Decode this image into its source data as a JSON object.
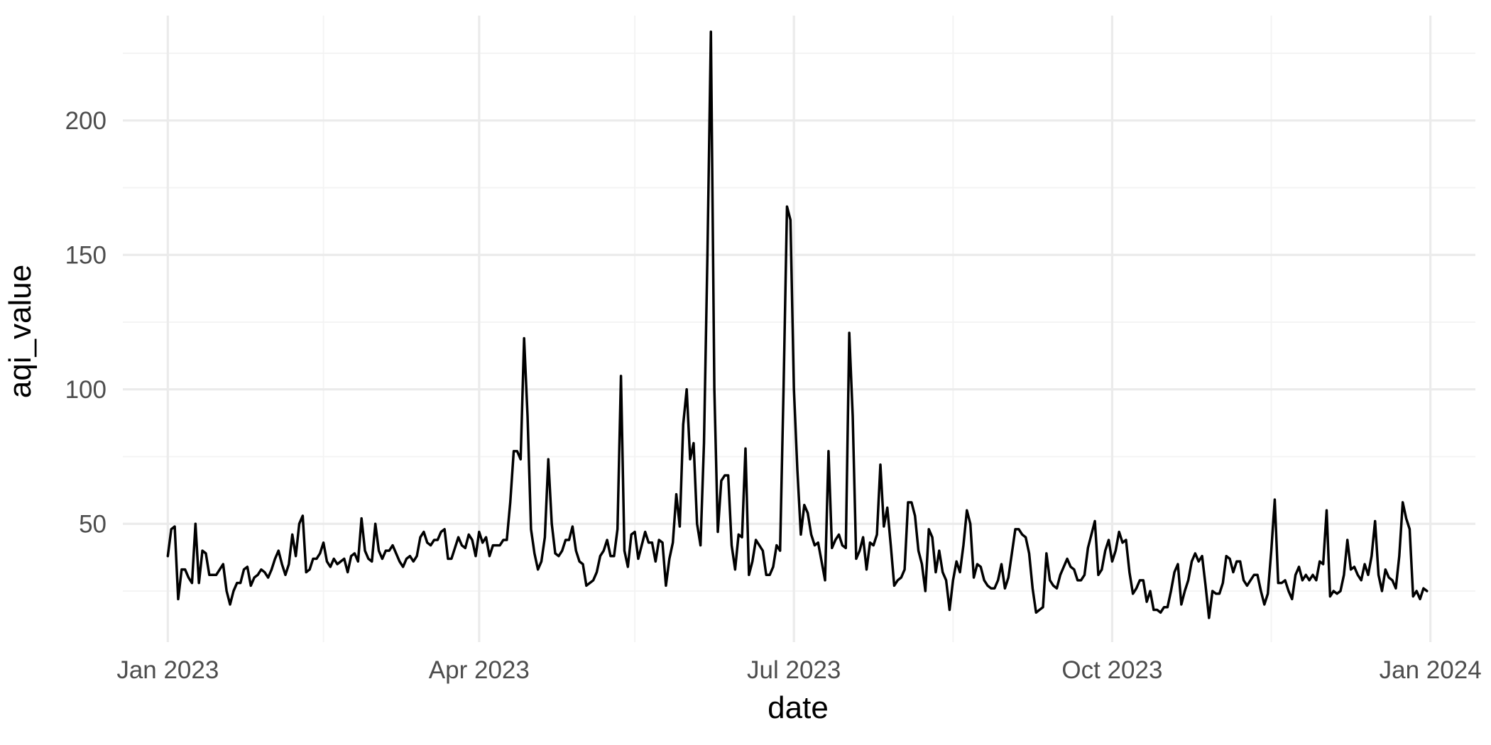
{
  "chart_data": {
    "type": "line",
    "title": "",
    "xlabel": "date",
    "ylabel": "aqi_value",
    "x_type": "date",
    "xlim": [
      "2022-12-19",
      "2024-01-14"
    ],
    "ylim": [
      6,
      239
    ],
    "x_ticks": [
      {
        "date": "2023-01-01",
        "label": "Jan 2023"
      },
      {
        "date": "2023-04-01",
        "label": "Apr 2023"
      },
      {
        "date": "2023-07-01",
        "label": "Jul 2023"
      },
      {
        "date": "2023-10-01",
        "label": "Oct 2023"
      },
      {
        "date": "2024-01-01",
        "label": "Jan 2024"
      }
    ],
    "x_minor_ticks": [
      "2023-02-15",
      "2023-05-16",
      "2023-08-16",
      "2023-11-16"
    ],
    "y_ticks": [
      50,
      100,
      150,
      200
    ],
    "y_minor_ticks": [
      25,
      75,
      125,
      175,
      225
    ],
    "grid": true,
    "legend": "none",
    "line_color": "#000000",
    "start_date": "2023-01-01",
    "x": [
      "2023-01-01",
      "2023-01-02",
      "2023-01-03",
      "2023-01-04",
      "2023-01-05",
      "2023-01-06",
      "2023-01-07",
      "2023-01-08",
      "2023-01-09",
      "2023-01-10",
      "2023-01-11",
      "2023-01-12",
      "2023-01-13",
      "2023-01-14",
      "2023-01-15",
      "2023-01-16",
      "2023-01-17",
      "2023-01-18",
      "2023-01-19",
      "2023-01-20",
      "2023-01-21",
      "2023-01-22",
      "2023-01-23",
      "2023-01-24",
      "2023-01-25",
      "2023-01-26",
      "2023-01-27",
      "2023-01-28",
      "2023-01-29",
      "2023-01-30",
      "2023-01-31",
      "2023-02-01",
      "2023-02-02",
      "2023-02-03",
      "2023-02-04",
      "2023-02-05",
      "2023-02-06",
      "2023-02-07",
      "2023-02-08",
      "2023-02-09",
      "2023-02-10",
      "2023-02-11",
      "2023-02-12",
      "2023-02-13",
      "2023-02-14",
      "2023-02-15",
      "2023-02-16",
      "2023-02-17",
      "2023-02-18",
      "2023-02-19",
      "2023-02-20",
      "2023-02-21",
      "2023-02-22",
      "2023-02-23",
      "2023-02-24",
      "2023-02-25",
      "2023-02-26",
      "2023-02-27",
      "2023-02-28",
      "2023-03-01",
      "2023-03-02",
      "2023-03-03",
      "2023-03-04",
      "2023-03-05",
      "2023-03-06",
      "2023-03-07",
      "2023-03-08",
      "2023-03-09",
      "2023-03-10",
      "2023-03-11",
      "2023-03-12",
      "2023-03-13",
      "2023-03-14",
      "2023-03-15",
      "2023-03-16",
      "2023-03-17",
      "2023-03-18",
      "2023-03-19",
      "2023-03-20",
      "2023-03-21",
      "2023-03-22",
      "2023-03-23",
      "2023-03-24",
      "2023-03-25",
      "2023-03-26",
      "2023-03-27",
      "2023-03-28",
      "2023-03-29",
      "2023-03-30",
      "2023-03-31",
      "2023-04-01",
      "2023-04-02",
      "2023-04-03",
      "2023-04-04",
      "2023-04-05",
      "2023-04-06",
      "2023-04-07",
      "2023-04-08",
      "2023-04-09",
      "2023-04-10",
      "2023-04-11",
      "2023-04-12",
      "2023-04-13",
      "2023-04-14",
      "2023-04-15",
      "2023-04-16",
      "2023-04-17",
      "2023-04-18",
      "2023-04-19",
      "2023-04-20",
      "2023-04-21",
      "2023-04-22",
      "2023-04-23",
      "2023-04-24",
      "2023-04-25",
      "2023-04-26",
      "2023-04-27",
      "2023-04-28",
      "2023-04-29",
      "2023-04-30",
      "2023-05-01",
      "2023-05-02",
      "2023-05-03",
      "2023-05-04",
      "2023-05-05",
      "2023-05-06",
      "2023-05-07",
      "2023-05-08",
      "2023-05-09",
      "2023-05-10",
      "2023-05-11",
      "2023-05-12",
      "2023-05-13",
      "2023-05-14",
      "2023-05-15",
      "2023-05-16",
      "2023-05-17",
      "2023-05-18",
      "2023-05-19",
      "2023-05-20",
      "2023-05-21",
      "2023-05-22",
      "2023-05-23",
      "2023-05-24",
      "2023-05-25",
      "2023-05-26",
      "2023-05-27",
      "2023-05-28",
      "2023-05-29",
      "2023-05-30",
      "2023-05-31",
      "2023-06-01",
      "2023-06-02",
      "2023-06-03",
      "2023-06-04",
      "2023-06-05",
      "2023-06-06",
      "2023-06-07",
      "2023-06-08",
      "2023-06-09",
      "2023-06-10",
      "2023-06-11",
      "2023-06-12",
      "2023-06-13",
      "2023-06-14",
      "2023-06-15",
      "2023-06-16",
      "2023-06-17",
      "2023-06-18",
      "2023-06-19",
      "2023-06-20",
      "2023-06-21",
      "2023-06-22",
      "2023-06-23",
      "2023-06-24",
      "2023-06-25",
      "2023-06-26",
      "2023-06-27",
      "2023-06-28",
      "2023-06-29",
      "2023-06-30",
      "2023-07-01",
      "2023-07-02",
      "2023-07-03",
      "2023-07-04",
      "2023-07-05",
      "2023-07-06",
      "2023-07-07",
      "2023-07-08",
      "2023-07-09",
      "2023-07-10",
      "2023-07-11",
      "2023-07-12",
      "2023-07-13",
      "2023-07-14",
      "2023-07-15",
      "2023-07-16",
      "2023-07-17",
      "2023-07-18",
      "2023-07-19",
      "2023-07-20",
      "2023-07-21",
      "2023-07-22",
      "2023-07-23",
      "2023-07-24",
      "2023-07-25",
      "2023-07-26",
      "2023-07-27",
      "2023-07-28",
      "2023-07-29",
      "2023-07-30",
      "2023-07-31",
      "2023-08-01",
      "2023-08-02",
      "2023-08-03",
      "2023-08-04",
      "2023-08-05",
      "2023-08-06",
      "2023-08-07",
      "2023-08-08",
      "2023-08-09",
      "2023-08-10",
      "2023-08-11",
      "2023-08-12",
      "2023-08-13",
      "2023-08-14",
      "2023-08-15",
      "2023-08-16",
      "2023-08-17",
      "2023-08-18",
      "2023-08-19",
      "2023-08-20",
      "2023-08-21",
      "2023-08-22",
      "2023-08-23",
      "2023-08-24",
      "2023-08-25",
      "2023-08-26",
      "2023-08-27",
      "2023-08-28",
      "2023-08-29",
      "2023-08-30",
      "2023-08-31",
      "2023-09-01",
      "2023-09-02",
      "2023-09-03",
      "2023-09-04",
      "2023-09-05",
      "2023-09-06",
      "2023-09-07",
      "2023-09-08",
      "2023-09-09",
      "2023-09-10",
      "2023-09-11",
      "2023-09-12",
      "2023-09-13",
      "2023-09-14",
      "2023-09-15",
      "2023-09-16",
      "2023-09-17",
      "2023-09-18",
      "2023-09-19",
      "2023-09-20",
      "2023-09-21",
      "2023-09-22",
      "2023-09-23",
      "2023-09-24",
      "2023-09-25",
      "2023-09-26",
      "2023-09-27",
      "2023-09-28",
      "2023-09-29",
      "2023-09-30",
      "2023-10-01",
      "2023-10-02",
      "2023-10-03",
      "2023-10-04",
      "2023-10-05",
      "2023-10-06",
      "2023-10-07",
      "2023-10-08",
      "2023-10-09",
      "2023-10-10",
      "2023-10-11",
      "2023-10-12",
      "2023-10-13",
      "2023-10-14",
      "2023-10-15",
      "2023-10-16",
      "2023-10-17",
      "2023-10-18",
      "2023-10-19",
      "2023-10-20",
      "2023-10-21",
      "2023-10-22",
      "2023-10-23",
      "2023-10-24",
      "2023-10-25",
      "2023-10-26",
      "2023-10-27",
      "2023-10-28",
      "2023-10-29",
      "2023-10-30",
      "2023-10-31",
      "2023-11-01",
      "2023-11-02",
      "2023-11-03",
      "2023-11-04",
      "2023-11-05",
      "2023-11-06",
      "2023-11-07",
      "2023-11-08",
      "2023-11-09",
      "2023-11-10",
      "2023-11-11",
      "2023-11-12",
      "2023-11-13",
      "2023-11-14",
      "2023-11-15",
      "2023-11-16",
      "2023-11-17",
      "2023-11-18",
      "2023-11-19",
      "2023-11-20",
      "2023-11-21",
      "2023-11-22",
      "2023-11-23",
      "2023-11-24",
      "2023-11-25",
      "2023-11-26",
      "2023-11-27",
      "2023-11-28",
      "2023-11-29",
      "2023-11-30",
      "2023-12-01",
      "2023-12-02",
      "2023-12-03",
      "2023-12-04",
      "2023-12-05",
      "2023-12-06",
      "2023-12-07",
      "2023-12-08",
      "2023-12-09",
      "2023-12-10",
      "2023-12-11",
      "2023-12-12",
      "2023-12-13",
      "2023-12-14",
      "2023-12-15",
      "2023-12-16",
      "2023-12-17",
      "2023-12-18",
      "2023-12-19",
      "2023-12-20",
      "2023-12-21",
      "2023-12-22",
      "2023-12-23",
      "2023-12-24",
      "2023-12-25",
      "2023-12-26",
      "2023-12-27",
      "2023-12-28",
      "2023-12-29",
      "2023-12-30",
      "2023-12-31"
    ],
    "series": [
      {
        "values": [
          38,
          48,
          49,
          22,
          33,
          33,
          30,
          28,
          50,
          28,
          40,
          39,
          31,
          31,
          31,
          33,
          35,
          25,
          20,
          25,
          28,
          28,
          33,
          34,
          27,
          30,
          31,
          33,
          32,
          30,
          33,
          37,
          40,
          35,
          31,
          35,
          46,
          38,
          50,
          53,
          32,
          33,
          37,
          37,
          39,
          43,
          36,
          34,
          37,
          35,
          36,
          37,
          32,
          38,
          39,
          36,
          52,
          40,
          37,
          36,
          50,
          40,
          37,
          40,
          40,
          42,
          39,
          36,
          34,
          37,
          38,
          36,
          38,
          45,
          47,
          43,
          42,
          44,
          44,
          47,
          48,
          37,
          37,
          41,
          45,
          42,
          41,
          46,
          44,
          38,
          47,
          43,
          45,
          38,
          42,
          42,
          42,
          44,
          44,
          58,
          77,
          77,
          74,
          119,
          90,
          48,
          39,
          33,
          36,
          45,
          74,
          50,
          39,
          38,
          40,
          44,
          44,
          49,
          40,
          36,
          35,
          27,
          28,
          29,
          32,
          38,
          40,
          44,
          38,
          38,
          48,
          105,
          40,
          34,
          46,
          47,
          37,
          42,
          47,
          43,
          43,
          36,
          44,
          43,
          27,
          37,
          43,
          61,
          49,
          87,
          100,
          74,
          80,
          50,
          42,
          80,
          150,
          233,
          100,
          47,
          66,
          68,
          68,
          42,
          33,
          46,
          45,
          78,
          31,
          36,
          44,
          42,
          40,
          31,
          31,
          34,
          42,
          40,
          100,
          168,
          163,
          100,
          70,
          46,
          57,
          54,
          46,
          42,
          43,
          36,
          29,
          77,
          41,
          44,
          46,
          42,
          41,
          121,
          90,
          37,
          40,
          45,
          33,
          43,
          42,
          46,
          72,
          49,
          56,
          42,
          27,
          29,
          30,
          33,
          58,
          58,
          53,
          40,
          35,
          25,
          48,
          45,
          32,
          40,
          32,
          29,
          18,
          29,
          36,
          32,
          42,
          55,
          50,
          30,
          35,
          34,
          29,
          27,
          26,
          26,
          29,
          35,
          26,
          30,
          39,
          48,
          48,
          46,
          45,
          39,
          26,
          17,
          18,
          19,
          39,
          29,
          27,
          26,
          31,
          34,
          37,
          34,
          33,
          29,
          29,
          31,
          41,
          46,
          51,
          31,
          33,
          40,
          44,
          36,
          40,
          47,
          43,
          44,
          32,
          24,
          26,
          29,
          29,
          21,
          25,
          18,
          18,
          17,
          19,
          19,
          25,
          32,
          35,
          20,
          25,
          29,
          36,
          39,
          36,
          38,
          27,
          15,
          25,
          24,
          24,
          28,
          38,
          37,
          32,
          36,
          36,
          29,
          27,
          29,
          31,
          31,
          25,
          20,
          24,
          40,
          59,
          28,
          28,
          29,
          25,
          22,
          31,
          34,
          29,
          31,
          29,
          31,
          29,
          36,
          35,
          55,
          23,
          25,
          24,
          25,
          31,
          44,
          33,
          34,
          31,
          29,
          35,
          31,
          38,
          51,
          31,
          25,
          33,
          30,
          29,
          26,
          38,
          58,
          52,
          48,
          23,
          25,
          22,
          26,
          25
        ]
      }
    ]
  }
}
